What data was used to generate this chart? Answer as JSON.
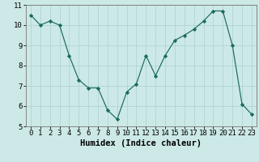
{
  "title": "",
  "xlabel": "Humidex (Indice chaleur)",
  "ylabel": "",
  "x": [
    0,
    1,
    2,
    3,
    4,
    5,
    6,
    7,
    8,
    9,
    10,
    11,
    12,
    13,
    14,
    15,
    16,
    17,
    18,
    19,
    20,
    21,
    22,
    23
  ],
  "y": [
    10.5,
    10.0,
    10.2,
    10.0,
    8.5,
    7.3,
    6.9,
    6.9,
    5.8,
    5.35,
    6.7,
    7.1,
    8.5,
    7.5,
    8.5,
    9.25,
    9.5,
    9.8,
    10.2,
    10.7,
    10.7,
    9.0,
    6.1,
    5.6
  ],
  "line_color": "#1a6b5a",
  "marker": "D",
  "marker_size": 2.2,
  "bg_color": "#cce9e7",
  "grid_color": "#b0d4d2",
  "ylim": [
    5,
    11
  ],
  "xlim": [
    -0.5,
    23.5
  ],
  "yticks": [
    5,
    6,
    7,
    8,
    9,
    10,
    11
  ],
  "xtick_labels": [
    "0",
    "1",
    "2",
    "3",
    "4",
    "5",
    "6",
    "7",
    "8",
    "9",
    "10",
    "11",
    "12",
    "13",
    "14",
    "15",
    "16",
    "17",
    "18",
    "19",
    "20",
    "21",
    "22",
    "23"
  ],
  "xlabel_fontsize": 7.5,
  "tick_fontsize": 6.5
}
